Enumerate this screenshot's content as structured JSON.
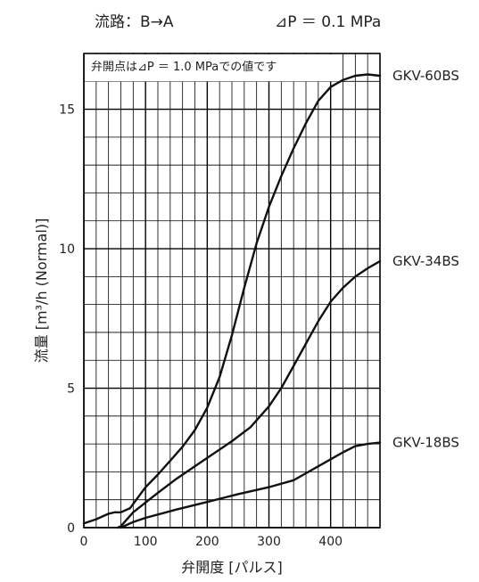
{
  "title": {
    "route": "流路：B→A",
    "pressure": "⊿P ＝ 0.1 MPa"
  },
  "chart_data": {
    "type": "line",
    "xlabel": "弁開度 [パルス]",
    "ylabel": "流量 [m³/h (Normal)]",
    "xlim": [
      0,
      480
    ],
    "ylim": [
      0,
      17
    ],
    "x_ticks": [
      0,
      100,
      200,
      300,
      400
    ],
    "y_ticks": [
      0,
      5,
      10,
      15
    ],
    "grid": true,
    "annotation": "弁開点は⊿P ＝ 1.0 MPaでの値です",
    "series": [
      {
        "name": "GKV-60BS",
        "points": [
          [
            0,
            0.15
          ],
          [
            20,
            0.3
          ],
          [
            40,
            0.5
          ],
          [
            50,
            0.55
          ],
          [
            60,
            0.55
          ],
          [
            75,
            0.7
          ],
          [
            85,
            1.0
          ],
          [
            100,
            1.45
          ],
          [
            120,
            1.9
          ],
          [
            140,
            2.4
          ],
          [
            160,
            2.9
          ],
          [
            180,
            3.5
          ],
          [
            200,
            4.3
          ],
          [
            220,
            5.4
          ],
          [
            240,
            6.9
          ],
          [
            260,
            8.6
          ],
          [
            280,
            10.2
          ],
          [
            300,
            11.5
          ],
          [
            320,
            12.6
          ],
          [
            340,
            13.6
          ],
          [
            360,
            14.5
          ],
          [
            380,
            15.3
          ],
          [
            400,
            15.8
          ],
          [
            420,
            16.05
          ],
          [
            440,
            16.2
          ],
          [
            460,
            16.25
          ],
          [
            480,
            16.2
          ]
        ]
      },
      {
        "name": "GKV-34BS",
        "points": [
          [
            55,
            0
          ],
          [
            60,
            0.05
          ],
          [
            70,
            0.3
          ],
          [
            80,
            0.55
          ],
          [
            100,
            0.9
          ],
          [
            120,
            1.25
          ],
          [
            150,
            1.75
          ],
          [
            200,
            2.5
          ],
          [
            240,
            3.1
          ],
          [
            270,
            3.6
          ],
          [
            300,
            4.35
          ],
          [
            320,
            5.0
          ],
          [
            340,
            5.8
          ],
          [
            360,
            6.6
          ],
          [
            380,
            7.4
          ],
          [
            400,
            8.1
          ],
          [
            420,
            8.6
          ],
          [
            440,
            9.0
          ],
          [
            460,
            9.3
          ],
          [
            480,
            9.55
          ]
        ]
      },
      {
        "name": "GKV-18BS",
        "points": [
          [
            60,
            0
          ],
          [
            65,
            0.05
          ],
          [
            80,
            0.2
          ],
          [
            100,
            0.35
          ],
          [
            150,
            0.65
          ],
          [
            200,
            0.92
          ],
          [
            250,
            1.2
          ],
          [
            300,
            1.45
          ],
          [
            340,
            1.7
          ],
          [
            360,
            1.95
          ],
          [
            380,
            2.2
          ],
          [
            400,
            2.45
          ],
          [
            420,
            2.7
          ],
          [
            440,
            2.92
          ],
          [
            460,
            3.0
          ],
          [
            480,
            3.05
          ]
        ]
      }
    ]
  }
}
